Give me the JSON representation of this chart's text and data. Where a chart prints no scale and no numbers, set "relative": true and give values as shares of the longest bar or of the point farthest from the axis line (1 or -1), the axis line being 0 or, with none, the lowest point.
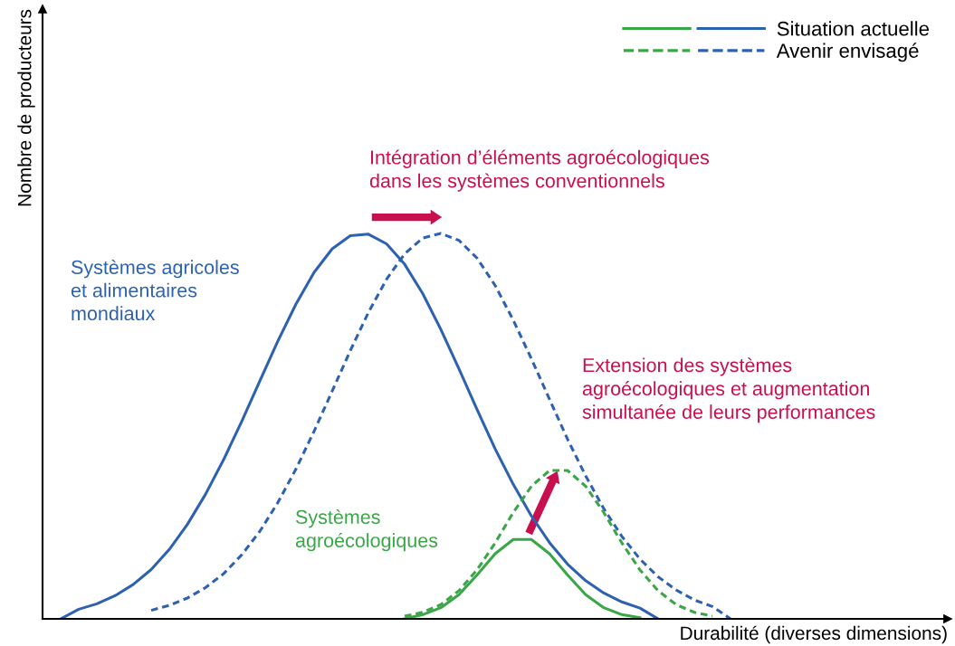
{
  "chart_data": {
    "type": "line",
    "relative": true,
    "xlabel": "Durabilité (diverses dimensions)",
    "ylabel": "Nombre de producteurs",
    "categories": [
      null,
      null,
      null,
      null,
      null,
      null,
      null,
      null,
      null,
      null,
      null,
      null,
      null,
      null,
      null,
      null,
      null,
      null,
      null,
      null,
      null,
      null,
      null,
      null,
      null,
      null,
      null,
      null,
      null,
      null,
      null,
      null,
      null,
      null,
      null,
      null,
      null,
      null,
      null,
      null,
      null,
      null,
      null,
      null,
      null,
      null,
      null,
      null,
      null,
      null,
      null
    ],
    "series": [
      {
        "name": "Situation actuelle",
        "color": "#2e62b0",
        "line_style": "solid",
        "values": [
          null,
          0,
          0.025,
          0.039,
          0.06,
          0.089,
          0.128,
          0.18,
          0.245,
          0.323,
          0.413,
          0.512,
          0.617,
          0.721,
          0.817,
          0.899,
          0.96,
          0.994,
          0.998,
          0.973,
          0.92,
          0.844,
          0.751,
          0.649,
          0.543,
          0.441,
          0.349,
          0.267,
          0.198,
          0.142,
          0.099,
          0.067,
          0.044,
          0.028,
          0,
          null,
          null,
          null,
          null,
          null,
          null,
          null,
          null,
          null,
          null,
          null,
          null,
          null,
          null,
          null,
          null
        ]
      },
      {
        "name": "Avenir envisagé",
        "color": "#2e62b0",
        "line_style": "dashed",
        "values": [
          null,
          null,
          null,
          null,
          null,
          null,
          0.022,
          0.035,
          0.054,
          0.081,
          0.117,
          0.166,
          0.227,
          0.302,
          0.389,
          0.487,
          0.591,
          0.696,
          0.795,
          0.881,
          0.947,
          0.988,
          1,
          0.982,
          0.936,
          0.865,
          0.775,
          0.675,
          0.57,
          0.466,
          0.371,
          0.286,
          0.214,
          0.155,
          0.109,
          0.075,
          0.049,
          0.032,
          0,
          null,
          null,
          null,
          null,
          null,
          null,
          null,
          null,
          null,
          null,
          null,
          null
        ]
      },
      {
        "color": "#3aa647",
        "line_style": "solid",
        "values": [
          null,
          null,
          null,
          null,
          null,
          null,
          null,
          null,
          null,
          null,
          null,
          null,
          null,
          null,
          null,
          null,
          null,
          null,
          null,
          null,
          0,
          0.011,
          0.029,
          0.063,
          0.114,
          0.169,
          0.206,
          0.206,
          0.169,
          0.114,
          0.063,
          0.029,
          0.011,
          0.003,
          null,
          null,
          null,
          null,
          null,
          null,
          null,
          null,
          null,
          null,
          null,
          null,
          null,
          null,
          null,
          null,
          null
        ]
      },
      {
        "color": "#3aa647",
        "line_style": "dashed",
        "values": [
          null,
          null,
          null,
          null,
          null,
          null,
          null,
          null,
          null,
          null,
          null,
          null,
          null,
          null,
          null,
          null,
          null,
          null,
          null,
          null,
          0.007,
          0.017,
          0.037,
          0.073,
          0.127,
          0.197,
          0.276,
          0.344,
          0.385,
          0.385,
          0.344,
          0.276,
          0.197,
          0.127,
          0.073,
          0.037,
          0.017,
          0.007,
          null,
          null,
          null,
          null,
          null,
          null,
          null,
          null,
          null,
          null,
          null,
          null,
          null
        ]
      }
    ],
    "legend": "top right",
    "grid": false,
    "annotations": [
      "Intégration d’éléments agroécologiques\ndans les systèmes conventionnels",
      "Systèmes agricoles\net alimentaires\nmondiaux",
      "Extension des systèmes\nagroécologiques et augmentation\nsimultanée de leurs performances",
      "Systèmes\nagroécologiques"
    ]
  }
}
